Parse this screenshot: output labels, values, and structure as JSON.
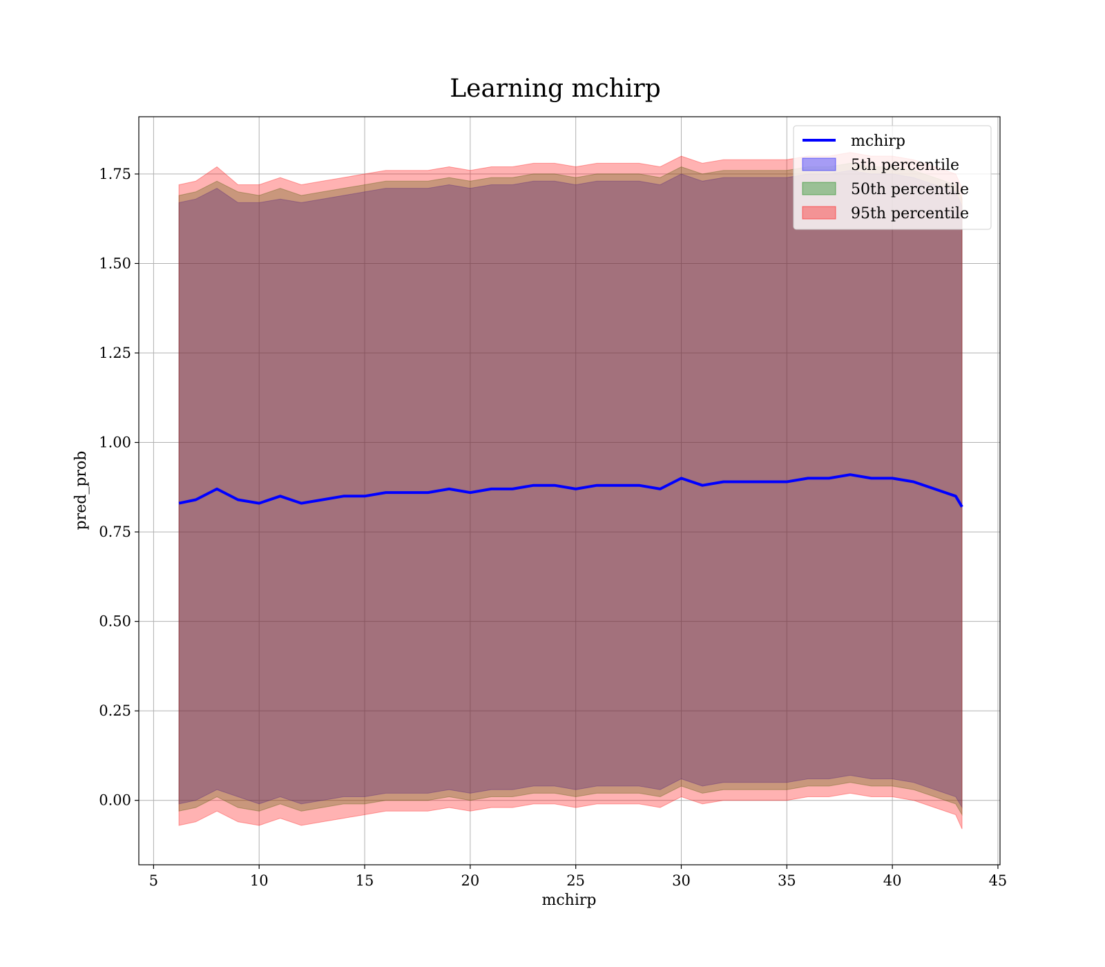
{
  "chart_data": {
    "type": "area",
    "title": "Learning mchirp",
    "xlabel": "mchirp",
    "ylabel": "pred_prob",
    "xlim": [
      4.3,
      45.1
    ],
    "ylim": [
      -0.18,
      1.91
    ],
    "xticks": [
      5,
      10,
      15,
      20,
      25,
      30,
      35,
      40,
      45
    ],
    "xtick_labels": [
      "5",
      "10",
      "15",
      "20",
      "25",
      "30",
      "35",
      "40",
      "45"
    ],
    "yticks": [
      0.0,
      0.25,
      0.5,
      0.75,
      1.0,
      1.25,
      1.5,
      1.75
    ],
    "ytick_labels": [
      "0.00",
      "0.25",
      "0.50",
      "0.75",
      "1.00",
      "1.25",
      "1.50",
      "1.75"
    ],
    "grid": true,
    "legend_position": "top-right",
    "legend": [
      "mchirp",
      "5th percentile",
      "50th percentile",
      "95th percentile"
    ],
    "x": [
      6.2,
      7.0,
      8.0,
      9.0,
      10.0,
      11.0,
      12.0,
      13.0,
      14.0,
      15.0,
      16.0,
      17.0,
      18.0,
      19.0,
      20.0,
      21.0,
      22.0,
      23.0,
      24.0,
      25.0,
      26.0,
      27.0,
      28.0,
      29.0,
      30.0,
      31.0,
      32.0,
      33.0,
      34.0,
      35.0,
      36.0,
      37.0,
      38.0,
      39.0,
      40.0,
      41.0,
      42.0,
      43.0,
      43.3
    ],
    "series": [
      {
        "name": "mchirp",
        "kind": "line",
        "color": "#0000ff",
        "values": [
          0.83,
          0.84,
          0.87,
          0.84,
          0.83,
          0.85,
          0.83,
          0.84,
          0.85,
          0.85,
          0.86,
          0.86,
          0.86,
          0.87,
          0.86,
          0.87,
          0.87,
          0.88,
          0.88,
          0.87,
          0.88,
          0.88,
          0.88,
          0.87,
          0.9,
          0.88,
          0.89,
          0.89,
          0.89,
          0.89,
          0.9,
          0.9,
          0.91,
          0.9,
          0.9,
          0.89,
          0.87,
          0.85,
          0.82
        ]
      },
      {
        "name": "5th percentile",
        "kind": "band",
        "color": "#0000ff",
        "upper": [
          1.67,
          1.68,
          1.71,
          1.67,
          1.67,
          1.68,
          1.67,
          1.68,
          1.69,
          1.7,
          1.71,
          1.71,
          1.71,
          1.72,
          1.71,
          1.72,
          1.72,
          1.73,
          1.73,
          1.72,
          1.73,
          1.73,
          1.73,
          1.72,
          1.75,
          1.73,
          1.74,
          1.74,
          1.74,
          1.74,
          1.75,
          1.75,
          1.76,
          1.75,
          1.75,
          1.74,
          1.72,
          1.7,
          1.66
        ],
        "lower": [
          -0.01,
          0.0,
          0.03,
          0.01,
          -0.01,
          0.01,
          -0.01,
          0.0,
          0.01,
          0.01,
          0.02,
          0.02,
          0.02,
          0.03,
          0.02,
          0.03,
          0.03,
          0.04,
          0.04,
          0.03,
          0.04,
          0.04,
          0.04,
          0.03,
          0.06,
          0.04,
          0.05,
          0.05,
          0.05,
          0.05,
          0.06,
          0.06,
          0.07,
          0.06,
          0.06,
          0.05,
          0.03,
          0.01,
          -0.02
        ]
      },
      {
        "name": "50th percentile",
        "kind": "band",
        "color": "#008000",
        "upper": [
          1.69,
          1.7,
          1.73,
          1.7,
          1.69,
          1.71,
          1.69,
          1.7,
          1.71,
          1.72,
          1.73,
          1.73,
          1.73,
          1.74,
          1.73,
          1.74,
          1.74,
          1.75,
          1.75,
          1.74,
          1.75,
          1.75,
          1.75,
          1.74,
          1.77,
          1.75,
          1.76,
          1.76,
          1.76,
          1.76,
          1.77,
          1.77,
          1.78,
          1.77,
          1.77,
          1.76,
          1.74,
          1.72,
          1.68
        ],
        "lower": [
          -0.03,
          -0.02,
          0.01,
          -0.02,
          -0.03,
          -0.01,
          -0.03,
          -0.02,
          -0.01,
          -0.01,
          0.0,
          0.0,
          0.0,
          0.01,
          0.0,
          0.01,
          0.01,
          0.02,
          0.02,
          0.01,
          0.02,
          0.02,
          0.02,
          0.01,
          0.04,
          0.02,
          0.03,
          0.03,
          0.03,
          0.03,
          0.04,
          0.04,
          0.05,
          0.04,
          0.04,
          0.03,
          0.01,
          -0.01,
          -0.04
        ]
      },
      {
        "name": "95th percentile",
        "kind": "band",
        "color": "#ff0000",
        "upper": [
          1.72,
          1.73,
          1.77,
          1.72,
          1.72,
          1.74,
          1.72,
          1.73,
          1.74,
          1.75,
          1.76,
          1.76,
          1.76,
          1.77,
          1.76,
          1.77,
          1.77,
          1.78,
          1.78,
          1.77,
          1.78,
          1.78,
          1.78,
          1.77,
          1.8,
          1.78,
          1.79,
          1.79,
          1.79,
          1.79,
          1.8,
          1.8,
          1.81,
          1.8,
          1.8,
          1.79,
          1.77,
          1.75,
          1.71
        ],
        "lower": [
          -0.07,
          -0.06,
          -0.03,
          -0.06,
          -0.07,
          -0.05,
          -0.07,
          -0.06,
          -0.05,
          -0.04,
          -0.03,
          -0.03,
          -0.03,
          -0.02,
          -0.03,
          -0.02,
          -0.02,
          -0.01,
          -0.01,
          -0.02,
          -0.01,
          -0.01,
          -0.01,
          -0.02,
          0.01,
          -0.01,
          0.0,
          0.0,
          0.0,
          0.0,
          0.01,
          0.01,
          0.02,
          0.01,
          0.01,
          0.0,
          -0.02,
          -0.04,
          -0.08
        ]
      }
    ]
  }
}
